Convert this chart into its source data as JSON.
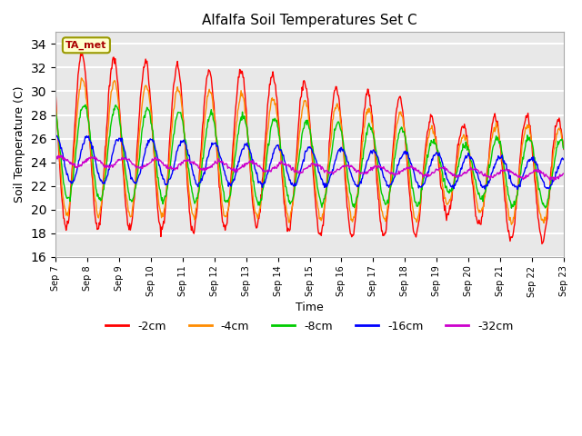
{
  "title": "Alfalfa Soil Temperatures Set C",
  "xlabel": "Time",
  "ylabel": "Soil Temperature (C)",
  "ylim": [
    16,
    35
  ],
  "yticks": [
    16,
    18,
    20,
    22,
    24,
    26,
    28,
    30,
    32,
    34
  ],
  "series_colors": {
    "-2cm": "#ff0000",
    "-4cm": "#ff8c00",
    "-8cm": "#00cc00",
    "-16cm": "#0000ff",
    "-32cm": "#cc00cc"
  },
  "legend_labels": [
    "-2cm",
    "-4cm",
    "-8cm",
    "-16cm",
    "-32cm"
  ],
  "ta_met_label": "TA_met",
  "fig_bg": "#ffffff",
  "plot_bg": "#e8e8e8",
  "n_days": 16,
  "start_day": 7
}
